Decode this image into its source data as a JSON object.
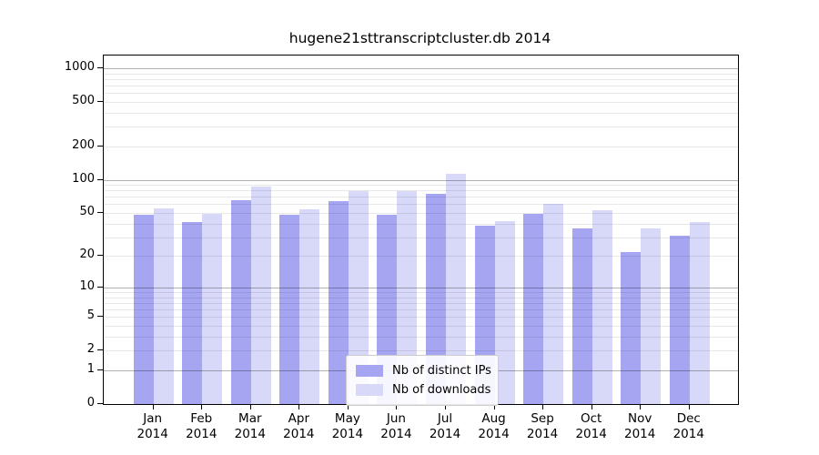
{
  "chart_data": {
    "type": "bar",
    "title": "hugene21sttranscriptcluster.db 2014",
    "categories": [
      "Jan",
      "Feb",
      "Mar",
      "Apr",
      "May",
      "Jun",
      "Jul",
      "Aug",
      "Sep",
      "Oct",
      "Nov",
      "Dec"
    ],
    "x_sublabel_year": "2014",
    "series": [
      {
        "name": "Nb of distinct IPs",
        "color": "#a5a5f2",
        "values": [
          48,
          41,
          65,
          48,
          64,
          48,
          74,
          38,
          49,
          36,
          22,
          31
        ]
      },
      {
        "name": "Nb of downloads",
        "color": "#d8d8f9",
        "values": [
          55,
          49,
          86,
          54,
          79,
          79,
          113,
          42,
          60,
          53,
          36,
          41
        ]
      }
    ],
    "y_axis": {
      "scale": "log10(value+1)",
      "ticks": [
        0,
        1,
        2,
        5,
        10,
        20,
        50,
        100,
        200,
        500,
        1000
      ],
      "range_max": 1300,
      "major_gridlines": [
        1,
        10,
        100,
        1000
      ],
      "minor_gridlines": [
        2,
        3,
        4,
        5,
        6,
        7,
        8,
        9,
        20,
        30,
        40,
        50,
        60,
        70,
        80,
        90,
        200,
        300,
        400,
        500,
        600,
        700,
        800,
        900
      ]
    },
    "legend": {
      "position": "bottom-center",
      "entries": [
        "Nb of distinct IPs",
        "Nb of downloads"
      ]
    },
    "grid": true,
    "xlabel": "",
    "ylabel": ""
  },
  "colors": {
    "bar_ips": "#a5a5f2",
    "bar_downloads": "#d8d8f9",
    "plot_border": "#000000",
    "legend_border": "#cccccc",
    "grid_major": "rgba(0,0,0,0.30)",
    "grid_minor": "rgba(0,0,0,0.09)",
    "background": "#ffffff"
  }
}
